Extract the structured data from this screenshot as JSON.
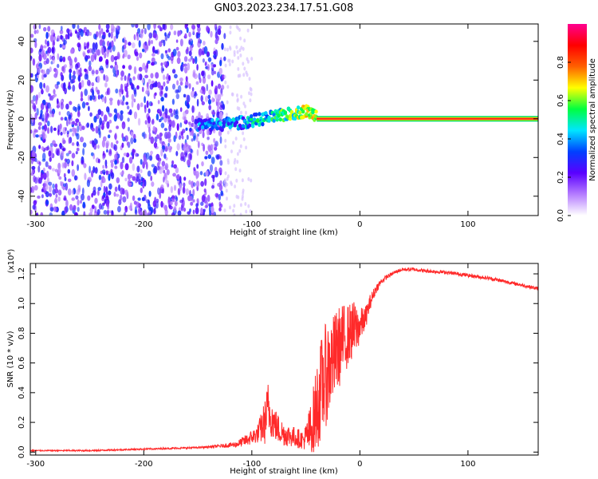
{
  "title": "GN03.2023.234.17.51.G08",
  "colors": {
    "snr_line": "#ff2a2a",
    "noise": "#7a20ff",
    "trace_core": "#ff2020"
  },
  "chart_data": [
    {
      "type": "heatmap",
      "xlabel": "Height of straight line (km)",
      "ylabel": "Frequency (Hz)",
      "xlim": [
        -305,
        165
      ],
      "ylim": [
        -50,
        49
      ],
      "xticks": [
        {
          "v": -300,
          "label": "-300"
        },
        {
          "v": -200,
          "label": "-200"
        },
        {
          "v": -100,
          "label": "-100"
        },
        {
          "v": 0,
          "label": "0"
        },
        {
          "v": 100,
          "label": "100"
        }
      ],
      "yticks": [
        {
          "v": -40,
          "label": "-40"
        },
        {
          "v": -20,
          "label": "-20"
        },
        {
          "v": 0,
          "label": "0"
        },
        {
          "v": 20,
          "label": "20"
        },
        {
          "v": 40,
          "label": "40"
        }
      ],
      "colorbar": {
        "label": "Normalized spectral amplitude",
        "range": [
          0,
          1
        ],
        "ticks": [
          {
            "v": 0.0,
            "label": "0.0"
          },
          {
            "v": 0.2,
            "label": "0.2"
          },
          {
            "v": 0.4,
            "label": "0.4"
          },
          {
            "v": 0.6,
            "label": "0.6"
          },
          {
            "v": 0.8,
            "label": "0.8"
          }
        ],
        "stops": [
          "#ffffff",
          "#b57cff",
          "#5a00ff",
          "#0040ff",
          "#00e5ff",
          "#00ff40",
          "#ffff00",
          "#ff6000",
          "#ff0000",
          "#ff0090"
        ]
      },
      "trace": {
        "x": [
          -150,
          -130,
          -110,
          -100,
          -90,
          -80,
          -70,
          -60,
          -50,
          -40,
          -30,
          -20,
          -10,
          0,
          20,
          60,
          100,
          165
        ],
        "f": [
          -3,
          -3,
          -2,
          -1,
          0,
          1,
          2,
          3,
          4,
          2,
          1,
          0,
          0,
          0,
          0,
          0,
          0,
          0
        ],
        "amp": [
          0.45,
          0.5,
          0.5,
          0.55,
          0.6,
          0.6,
          0.65,
          0.7,
          0.8,
          0.8,
          0.85,
          0.9,
          0.9,
          0.95,
          1,
          1,
          1,
          1
        ]
      }
    },
    {
      "type": "line",
      "xlabel": "Height of straight line (km)",
      "ylabel": "SNR (10 * v/v)",
      "y_multiplier": "(x10⁴)",
      "xlim": [
        -305,
        165
      ],
      "ylim": [
        -0.02,
        1.27
      ],
      "xticks": [
        {
          "v": -300,
          "label": "-300"
        },
        {
          "v": -200,
          "label": "-200"
        },
        {
          "v": -100,
          "label": "-100"
        },
        {
          "v": 0,
          "label": "0"
        },
        {
          "v": 100,
          "label": "100"
        }
      ],
      "yticks": [
        {
          "v": 0.0,
          "label": "0.0"
        },
        {
          "v": 0.2,
          "label": "0.2"
        },
        {
          "v": 0.4,
          "label": "0.4"
        },
        {
          "v": 0.6,
          "label": "0.6"
        },
        {
          "v": 0.8,
          "label": "0.8"
        },
        {
          "v": 1.0,
          "label": "1.0"
        },
        {
          "v": 1.2,
          "label": "1.2"
        }
      ],
      "series": [
        {
          "x": [
            -305,
            -280,
            -250,
            -200,
            -150,
            -130,
            -115,
            -105,
            -95,
            -88,
            -85,
            -80,
            -75,
            -70,
            -60,
            -52,
            -45,
            -40,
            -35,
            -30,
            -25,
            -20,
            -15,
            -10,
            -5,
            0,
            5,
            10,
            15,
            20,
            25,
            30,
            35,
            40,
            50,
            60,
            80,
            100,
            120,
            140,
            165
          ],
          "y": [
            0.01,
            0.01,
            0.01,
            0.02,
            0.03,
            0.04,
            0.05,
            0.08,
            0.12,
            0.2,
            0.3,
            0.2,
            0.15,
            0.12,
            0.1,
            0.08,
            0.15,
            0.3,
            0.45,
            0.55,
            0.62,
            0.7,
            0.75,
            0.8,
            0.82,
            0.85,
            0.9,
            1.02,
            1.1,
            1.15,
            1.18,
            1.2,
            1.22,
            1.23,
            1.23,
            1.22,
            1.21,
            1.19,
            1.17,
            1.14,
            1.1
          ],
          "noise": [
            0.004,
            0.004,
            0.005,
            0.005,
            0.006,
            0.01,
            0.02,
            0.04,
            0.06,
            0.15,
            0.18,
            0.12,
            0.1,
            0.08,
            0.07,
            0.06,
            0.2,
            0.3,
            0.35,
            0.35,
            0.3,
            0.28,
            0.25,
            0.2,
            0.2,
            0.12,
            0.08,
            0.05,
            0.03,
            0.02,
            0.015,
            0.012,
            0.012,
            0.012,
            0.012,
            0.012,
            0.012,
            0.012,
            0.012,
            0.012,
            0.012
          ]
        }
      ]
    }
  ]
}
